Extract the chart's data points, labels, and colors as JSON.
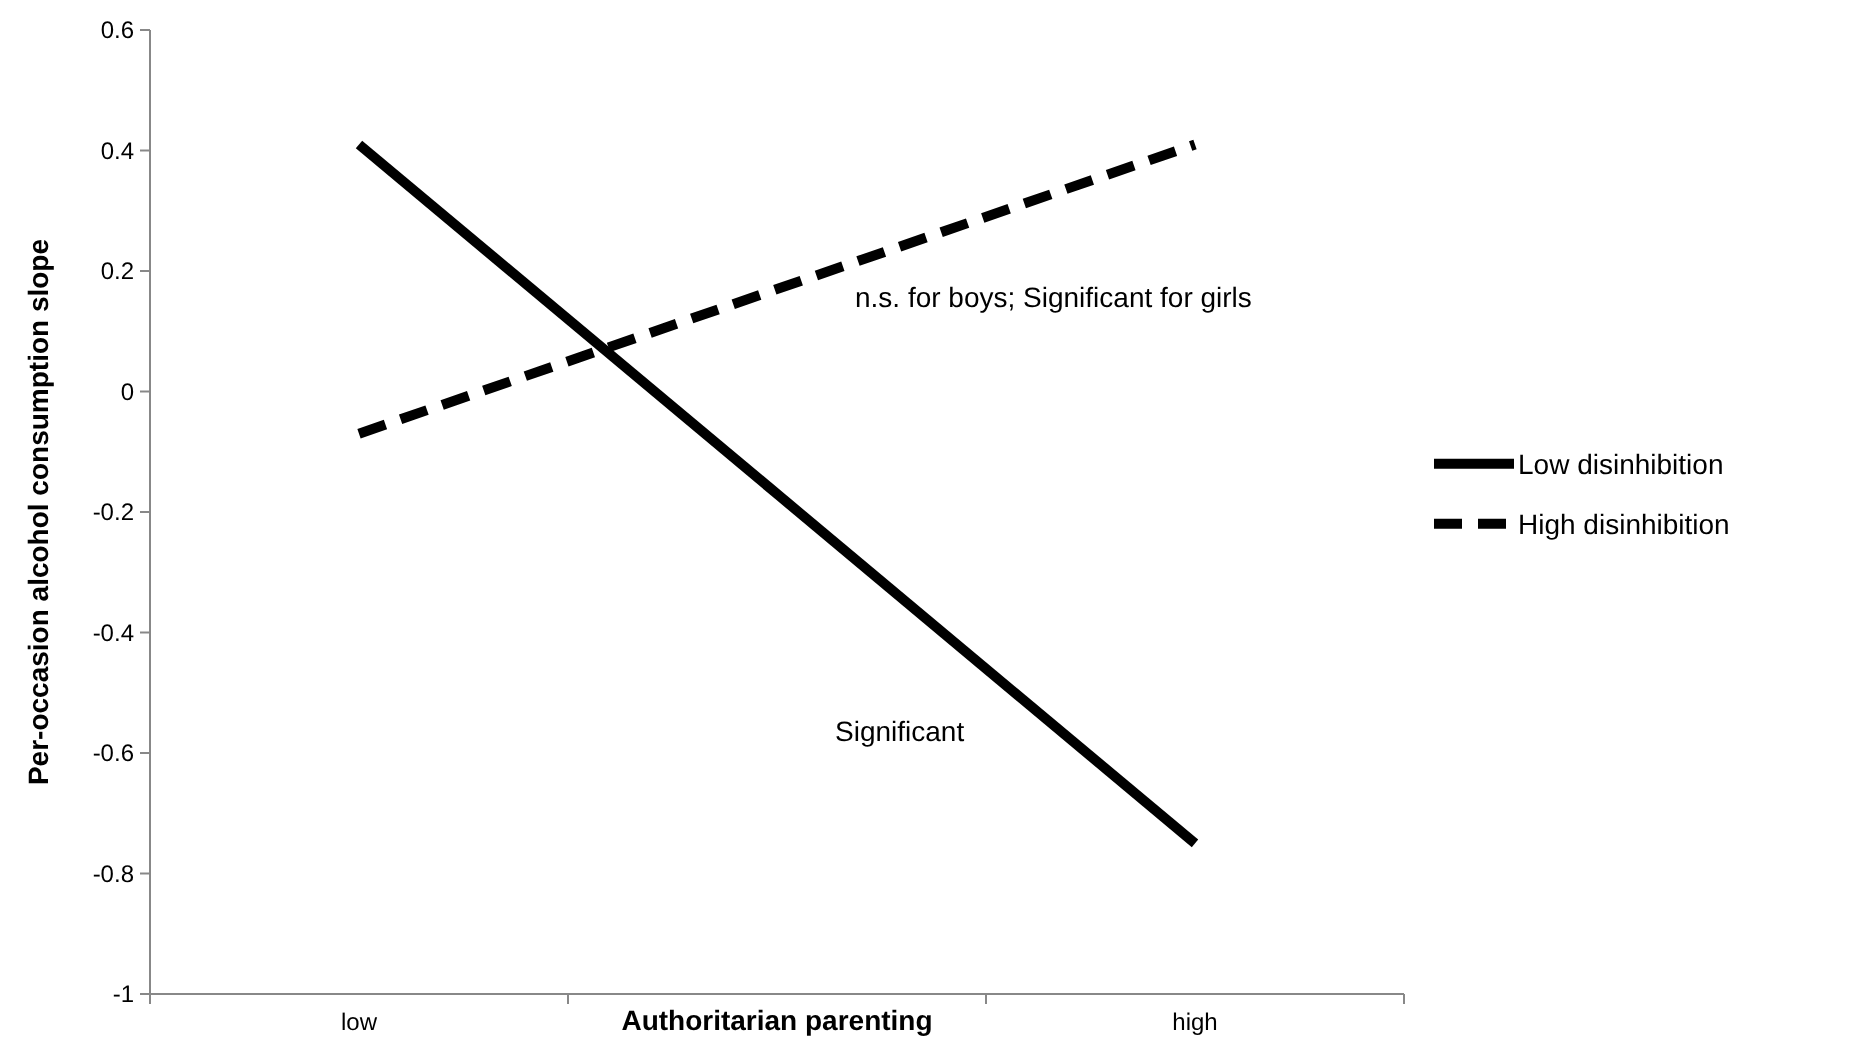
{
  "chart_data": {
    "type": "line",
    "xlabel": "Authoritarian parenting",
    "ylabel": "Per-occasion alcohol consumption slope",
    "categories": [
      "low",
      null,
      "high"
    ],
    "series": [
      {
        "name": "Low disinhibition",
        "color": "#000000",
        "values": [
          0.41,
          -0.17,
          -0.75
        ],
        "line_style": "solid"
      },
      {
        "name": "High disinhibition",
        "color": "#000000",
        "values": [
          -0.07,
          0.17,
          0.41
        ],
        "line_style": "dashed"
      }
    ],
    "ylim": [
      -1,
      0.6
    ],
    "yticks": [
      -1,
      -0.8,
      -0.6,
      -0.4,
      -0.2,
      0,
      0.2,
      0.4,
      0.6
    ],
    "grid": false,
    "legend": "right",
    "marker": "none",
    "annotations": [
      "n.s. for boys; Significant for girls",
      "Significant"
    ]
  }
}
